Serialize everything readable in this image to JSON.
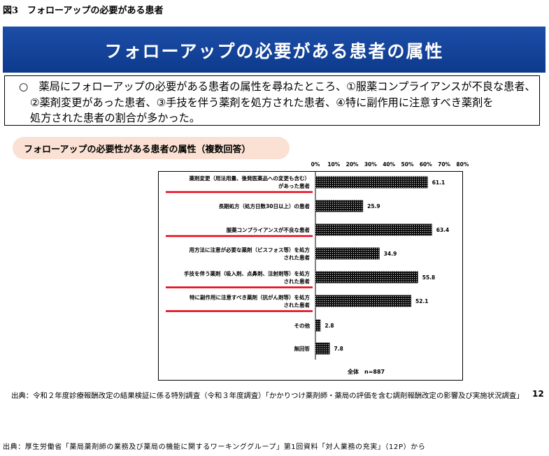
{
  "figure_label": "図3　フォローアップの必要がある患者",
  "banner_title": "フォローアップの必要がある患者の属性",
  "summary": {
    "lines": [
      "○　薬局にフォローアップの必要がある患者の属性を尋ねたところ、①服薬コンプライアンスが不良な患者、",
      "②薬剤変更があった患者、③手技を伴う薬剤を処方された患者、④特に副作用に注意すべき薬剤を",
      "処方された患者の割合が多かった。"
    ]
  },
  "chart_heading": "フォローアップの必要性がある患者の属性（複数回答）",
  "chart_data": {
    "type": "bar",
    "orientation": "horizontal",
    "x_ticks": [
      "0%",
      "10%",
      "20%",
      "30%",
      "40%",
      "50%",
      "60%",
      "70%",
      "80%"
    ],
    "xlim": [
      0,
      80
    ],
    "unit": "%",
    "categories": [
      [
        "薬剤変更（用法用量、後発医薬品への変更も含む）",
        "があった患者"
      ],
      [
        "長期処方（処方日数30日以上）の患者"
      ],
      [
        "服薬コンプライアンスが不良な患者"
      ],
      [
        "用方法に注意が必要な薬剤（ビスフォス等）を処方",
        "された患者"
      ],
      [
        "手技を伴う薬剤（吸入剤、点鼻剤、注射剤等）を処方",
        "された患者"
      ],
      [
        "特に副作用に注意すべき薬剤（抗がん剤等）を処方",
        "された患者"
      ],
      [
        "その他"
      ],
      [
        "無回答"
      ]
    ],
    "values": [
      61.1,
      25.9,
      63.4,
      34.9,
      55.8,
      52.1,
      2.8,
      7.8
    ],
    "value_labels": [
      "61.1",
      "25.9",
      "63.4",
      "34.9",
      "55.8",
      "52.1",
      "2.8",
      "7.8"
    ],
    "highlighted": [
      true,
      false,
      true,
      false,
      true,
      true,
      false,
      false
    ],
    "total_note": "全体　n=887",
    "bar_fill": "#111111",
    "highlight_color": "#e60012"
  },
  "source_note": "出典：令和２年度診療報酬改定の結果検証に係る特別調査（令和３年度調査）「かかりつけ薬剤師・薬局の評価を含む調剤報酬改定の影響及び実施状況調査」",
  "page_number": "12",
  "footer_source": "出典：厚生労働省「薬局薬剤師の業務及び薬局の機能に関するワーキンググループ」第1回資料「対人業務の充実」（12P）から"
}
